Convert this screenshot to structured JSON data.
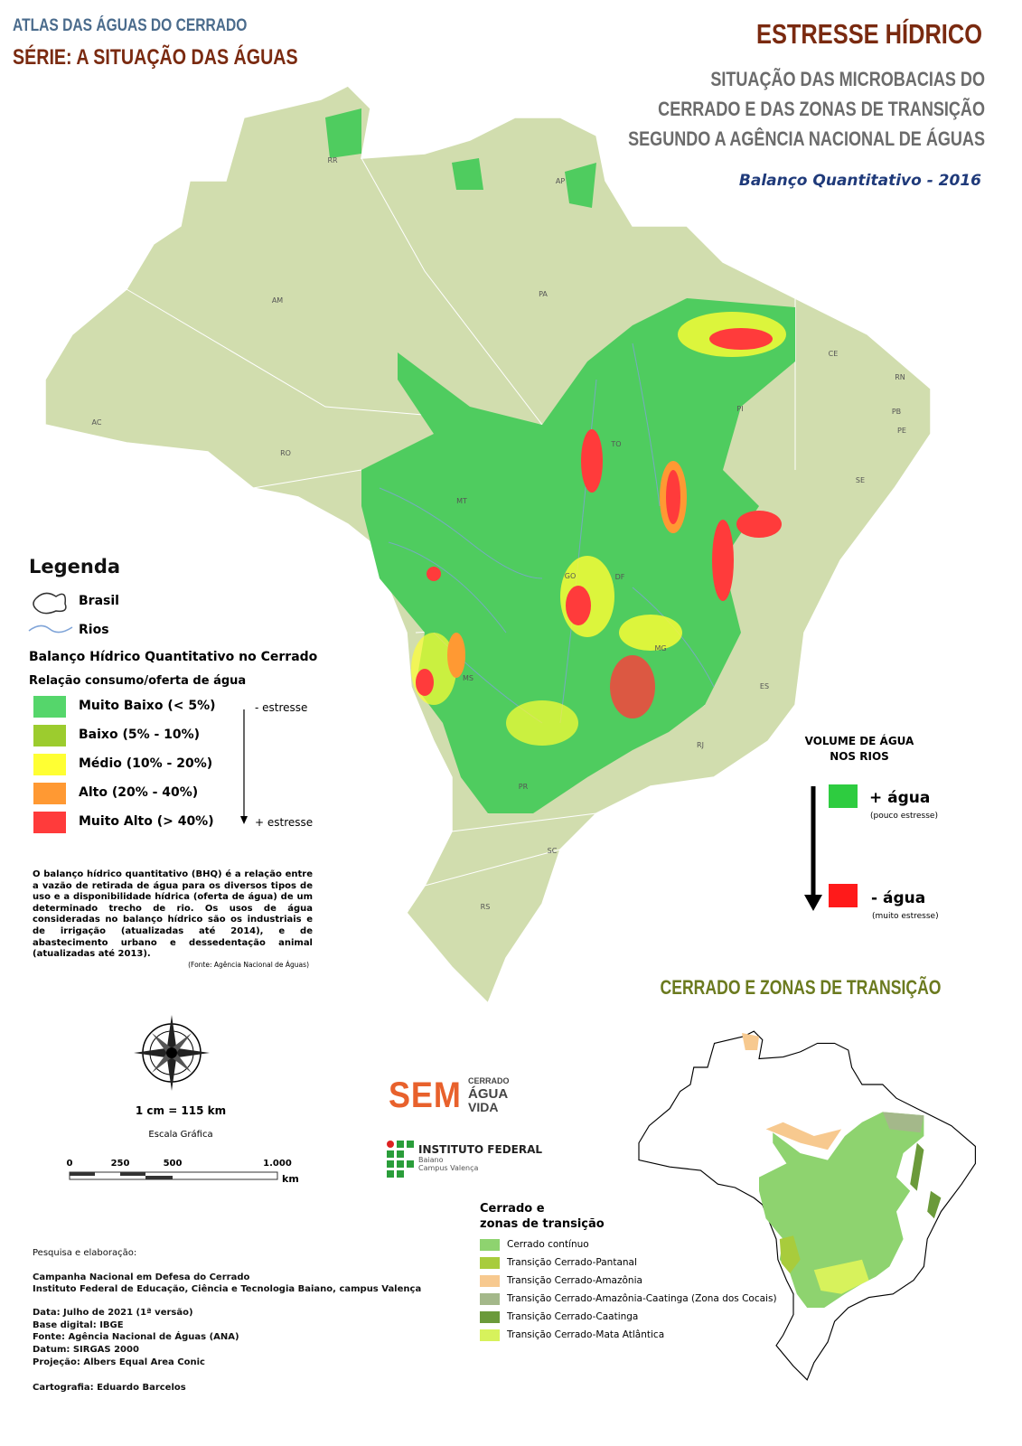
{
  "header": {
    "atlas": "ATLAS DAS ÁGUAS DO CERRADO",
    "series": "SÉRIE: A SITUAÇÃO DAS ÁGUAS",
    "title": "ESTRESSE HÍDRICO",
    "subtitle": [
      "SITUAÇÃO DAS MICROBACIAS DO",
      "CERRADO E DAS ZONAS DE TRANSIÇÃO",
      "SEGUNDO A AGÊNCIA NACIONAL DE ÁGUAS"
    ],
    "period": "Balanço Quantitativo - 2016"
  },
  "map": {
    "state_labels": [
      "AP",
      "RR",
      "AM",
      "PA",
      "AC",
      "RO",
      "MT",
      "TO",
      "PI",
      "CE",
      "RN",
      "PB",
      "PE",
      "SE",
      "GO",
      "DF",
      "MG",
      "MS",
      "ES",
      "RJ",
      "PR",
      "SC",
      "RS"
    ]
  },
  "legend": {
    "title": "Legenda",
    "brasil": "Brasil",
    "rios": "Rios",
    "section_title": "Balanço Hídrico Quantitativo no Cerrado",
    "relation": "Relação consumo/oferta de água",
    "classes": [
      {
        "label": "Muito Baixo (< 5%)",
        "color": "#55d66b"
      },
      {
        "label": "Baixo (5% - 10%)",
        "color": "#9ccc2e"
      },
      {
        "label": "Médio (10% - 20%)",
        "color": "#ffff33"
      },
      {
        "label": "Alto (20% - 40%)",
        "color": "#ff9933"
      },
      {
        "label": "Muito Alto (> 40%)",
        "color": "#ff3b3b"
      }
    ],
    "less_stress": "- estresse",
    "more_stress": "+ estresse",
    "description": "O balanço hídrico quantitativo (BHQ) é a relação entre a vazão de retirada de água para os diversos tipos de uso e a disponibilidade hídrica (oferta de água) de um determinado trecho de rio. Os usos de água consideradas no balanço hídrico são os industriais e de irrigação (atualizadas até 2014), e de abastecimento urbano e dessedentação animal (atualizadas até 2013).",
    "source": "(Fonte: Agência Nacional de Águas)"
  },
  "water_volume": {
    "title": [
      "VOLUME DE ÁGUA",
      "NOS RIOS"
    ],
    "more": {
      "label": "+ água",
      "note": "(pouco estresse)",
      "color": "#2ecc40"
    },
    "less": {
      "label": "- água",
      "note": "(muito estresse)",
      "color": "#ff1a1a"
    }
  },
  "scale": {
    "ratio": "1 cm = 115 km",
    "caption": "Escala Gráfica",
    "ticks": [
      "0",
      "250",
      "500",
      "1.000"
    ],
    "unit": "km"
  },
  "logos": {
    "sem": "SEM",
    "sem_words": [
      "CERRADO",
      "ÁGUA",
      "VIDA"
    ],
    "institute": "INSTITUTO FEDERAL",
    "campus": [
      "Baiano",
      "Campus Valença"
    ]
  },
  "inset": {
    "title": "CERRADO E ZONAS DE TRANSIÇÃO",
    "legend_title": [
      "Cerrado e",
      "zonas de transição"
    ],
    "classes": [
      {
        "label": "Cerrado contínuo",
        "color": "#8ed36f"
      },
      {
        "label": "Transição Cerrado-Pantanal",
        "color": "#a8cc3c"
      },
      {
        "label": "Transição Cerrado-Amazônia",
        "color": "#f7c98f"
      },
      {
        "label": "Transição Cerrado-Amazônia-Caatinga (Zona dos Cocais)",
        "color": "#a4b88a"
      },
      {
        "label": "Transição Cerrado-Caatinga",
        "color": "#6b9a3a"
      },
      {
        "label": "Transição Cerrado-Mata Atlântica",
        "color": "#d7f25c"
      }
    ]
  },
  "credits": [
    "Pesquisa e elaboração:",
    "Campanha Nacional em Defesa do Cerrado",
    "Instituto Federal de Educação, Ciência e Tecnologia Baiano, campus Valença",
    "Data: Julho de 2021 (1ª versão)",
    "Base digital: IBGE",
    "Fonte: Agência Nacional de Águas (ANA)",
    "Datum: SIRGAS 2000",
    "Projeção: Albers Equal Area Conic",
    "Cartografia: Eduardo Barcelos"
  ]
}
